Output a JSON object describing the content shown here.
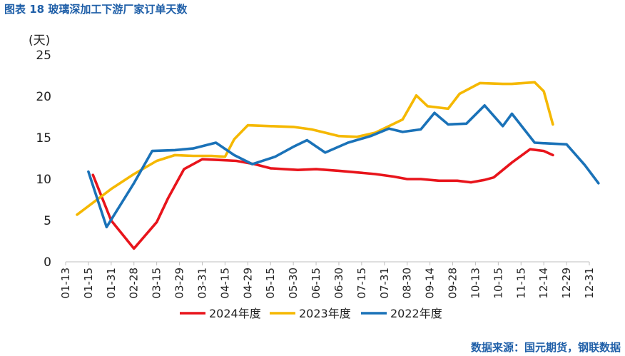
{
  "figure_title": "图表 18  玻璃深加工下游厂家订单天数",
  "source": "数据来源：国元期货，钢联数据",
  "chart_data": {
    "type": "line",
    "unit_label": "(天)",
    "ylim": [
      0,
      25
    ],
    "yticks": [
      0,
      5,
      10,
      15,
      20,
      25
    ],
    "x_ticks": [
      "01-13",
      "01-15",
      "01-31",
      "02-28",
      "03-15",
      "03-29",
      "03-31",
      "04-15",
      "04-29",
      "05-15",
      "05-30",
      "06-15",
      "06-30",
      "07-15",
      "07-31",
      "08-30",
      "09-14",
      "09-28",
      "10-13",
      "10-15",
      "11-15",
      "12-14",
      "12-29",
      "12-31"
    ],
    "grid": false,
    "legend_position": "bottom",
    "series": [
      {
        "name": "2024年度",
        "color": "#e8141b",
        "x": [
          1.2,
          2.0,
          3.0,
          4.0,
          4.5,
          5.2,
          6.0,
          6.8,
          7.5,
          8.3,
          9.0,
          10.2,
          11.0,
          12.0,
          12.8,
          13.6,
          14.4,
          15.0,
          15.6,
          16.4,
          17.2,
          17.8,
          18.4,
          18.8,
          19.6,
          20.4,
          21.0,
          21.4
        ],
        "values": [
          10.5,
          5.0,
          1.6,
          4.8,
          7.7,
          11.2,
          12.4,
          12.3,
          12.2,
          11.8,
          11.3,
          11.1,
          11.2,
          11.0,
          10.8,
          10.6,
          10.3,
          10.0,
          10.0,
          9.8,
          9.8,
          9.6,
          9.9,
          10.2,
          12.0,
          13.6,
          13.4,
          12.9
        ]
      },
      {
        "name": "2023年度",
        "color": "#f5b800",
        "x": [
          0.5,
          2.0,
          3.0,
          4.0,
          4.8,
          5.6,
          6.4,
          7.0,
          7.4,
          8.0,
          9.0,
          10.0,
          10.8,
          11.4,
          12.0,
          12.8,
          13.6,
          14.2,
          14.8,
          15.4,
          15.9,
          16.8,
          17.3,
          18.2,
          19.2,
          19.6,
          20.6,
          21.0,
          21.4
        ],
        "values": [
          5.7,
          8.8,
          10.6,
          12.2,
          12.9,
          12.8,
          12.8,
          12.7,
          14.8,
          16.5,
          16.4,
          16.3,
          16.0,
          15.6,
          15.2,
          15.1,
          15.6,
          16.4,
          17.2,
          20.1,
          18.8,
          18.5,
          20.3,
          21.6,
          21.5,
          21.5,
          21.7,
          20.6,
          16.6
        ]
      },
      {
        "name": "2022年度",
        "color": "#1a72b8",
        "x": [
          1.0,
          1.8,
          3.0,
          3.8,
          4.8,
          5.6,
          6.6,
          7.4,
          8.2,
          9.2,
          10.0,
          10.6,
          11.4,
          12.4,
          13.4,
          14.2,
          14.8,
          15.6,
          16.2,
          16.8,
          17.6,
          18.4,
          19.2,
          19.6,
          20.6,
          21.2,
          22.0,
          22.8,
          23.4
        ],
        "values": [
          10.9,
          4.2,
          9.5,
          13.4,
          13.5,
          13.7,
          14.4,
          12.9,
          11.8,
          12.7,
          13.9,
          14.7,
          13.2,
          14.4,
          15.2,
          16.1,
          15.7,
          16.0,
          18.0,
          16.6,
          16.7,
          18.9,
          16.4,
          17.9,
          14.4,
          14.3,
          14.2,
          11.7,
          9.5
        ]
      }
    ]
  }
}
